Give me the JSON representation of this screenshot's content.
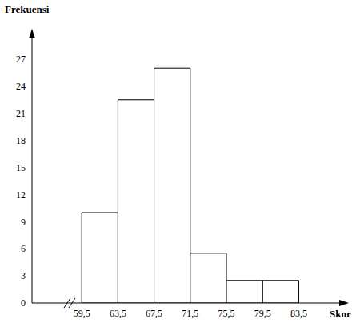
{
  "chart_data": {
    "type": "histogram",
    "y_label": "Frekuensi",
    "x_label": "Skor",
    "bins": [
      59.5,
      63.5,
      67.5,
      71.5,
      75.5,
      79.5,
      83.5
    ],
    "values": [
      10,
      22.5,
      26,
      5.5,
      2.5,
      2.5
    ],
    "color": "#ffffff",
    "xlim": [
      54,
      88.5
    ],
    "xticks": [
      {
        "value": 59.5,
        "label": "59,5"
      },
      {
        "value": 63.5,
        "label": "63,5"
      },
      {
        "value": 67.5,
        "label": "67,5"
      },
      {
        "value": 71.5,
        "label": "71,5"
      },
      {
        "value": 75.5,
        "label": "75,5"
      },
      {
        "value": 79.5,
        "label": "79,5"
      },
      {
        "value": 83.5,
        "label": "83,5"
      }
    ],
    "ylim": [
      0,
      30
    ],
    "yticks": [
      0,
      3,
      6,
      9,
      12,
      15,
      18,
      21,
      24,
      27
    ],
    "grid": false
  }
}
